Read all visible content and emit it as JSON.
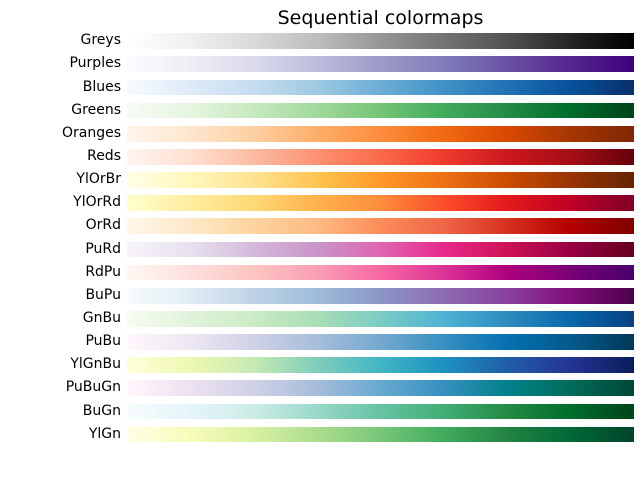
{
  "figure": {
    "title": "Sequential colormaps",
    "background_color": "#ffffff",
    "text_color": "#000000"
  },
  "chart_data": {
    "type": "heatmap",
    "title": "Sequential colormaps",
    "xlabel": "",
    "ylabel": "",
    "legend": "none",
    "grid": false,
    "layout": {
      "orientation": "horizontal-gradient-bars",
      "label_position": "left",
      "gradient_direction": "left-to-right",
      "stop_spacing": "even"
    },
    "categories": [
      "Greys",
      "Purples",
      "Blues",
      "Greens",
      "Oranges",
      "Reds",
      "YlOrBr",
      "YlOrRd",
      "OrRd",
      "PuRd",
      "RdPu",
      "BuPu",
      "GnBu",
      "PuBu",
      "YlGnBu",
      "PuBuGn",
      "BuGn",
      "YlGn"
    ],
    "rows": [
      {
        "label": "Greys",
        "gradient_stops": [
          "#ffffff",
          "#f0f0f0",
          "#d9d9d9",
          "#bdbdbd",
          "#969696",
          "#737373",
          "#525252",
          "#252525",
          "#000000"
        ]
      },
      {
        "label": "Purples",
        "gradient_stops": [
          "#fcfbfd",
          "#efedf5",
          "#dadaeb",
          "#bcbddc",
          "#9e9ac8",
          "#807dba",
          "#6a51a3",
          "#54278f",
          "#3f007d"
        ]
      },
      {
        "label": "Blues",
        "gradient_stops": [
          "#f7fbff",
          "#deebf7",
          "#c6dbef",
          "#9ecae1",
          "#6baed6",
          "#4292c6",
          "#2171b5",
          "#08519c",
          "#08306b"
        ]
      },
      {
        "label": "Greens",
        "gradient_stops": [
          "#f7fcf5",
          "#e5f5e0",
          "#c7e9c0",
          "#a1d99b",
          "#74c476",
          "#41ab5d",
          "#238b45",
          "#006d2c",
          "#00441b"
        ]
      },
      {
        "label": "Oranges",
        "gradient_stops": [
          "#fff5eb",
          "#fee6ce",
          "#fdd0a2",
          "#fdae6b",
          "#fd8d3c",
          "#f16913",
          "#d94801",
          "#a63603",
          "#7f2704"
        ]
      },
      {
        "label": "Reds",
        "gradient_stops": [
          "#fff5f0",
          "#fee0d2",
          "#fcbba1",
          "#fc9272",
          "#fb6a4a",
          "#ef3b2c",
          "#cb181d",
          "#a50f15",
          "#67000d"
        ]
      },
      {
        "label": "YlOrBr",
        "gradient_stops": [
          "#ffffe5",
          "#fff7bc",
          "#fee391",
          "#fec44f",
          "#fe9929",
          "#ec7014",
          "#cc4c02",
          "#993404",
          "#662506"
        ]
      },
      {
        "label": "YlOrRd",
        "gradient_stops": [
          "#ffffcc",
          "#ffeda0",
          "#fed976",
          "#feb24c",
          "#fd8d3c",
          "#fc4e2a",
          "#e31a1c",
          "#bd0026",
          "#800026"
        ]
      },
      {
        "label": "OrRd",
        "gradient_stops": [
          "#fff7ec",
          "#fee8c8",
          "#fdd49e",
          "#fdbb84",
          "#fc8d59",
          "#ef6548",
          "#d7301f",
          "#b30000",
          "#7f0000"
        ]
      },
      {
        "label": "PuRd",
        "gradient_stops": [
          "#f7f4f9",
          "#e7e1ef",
          "#d4b9da",
          "#c994c7",
          "#df65b0",
          "#e7298a",
          "#ce1256",
          "#980043",
          "#67001f"
        ]
      },
      {
        "label": "RdPu",
        "gradient_stops": [
          "#fff7f3",
          "#fde0dd",
          "#fcc5c0",
          "#fa9fb5",
          "#f768a1",
          "#dd3497",
          "#ae017e",
          "#7a0177",
          "#49006a"
        ]
      },
      {
        "label": "BuPu",
        "gradient_stops": [
          "#f7fcfd",
          "#e0ecf4",
          "#bfd3e6",
          "#9ebcda",
          "#8c96c6",
          "#8c6bb1",
          "#88419d",
          "#810f7c",
          "#4d004b"
        ]
      },
      {
        "label": "GnBu",
        "gradient_stops": [
          "#f7fcf0",
          "#e0f3db",
          "#ccebc5",
          "#a8ddb5",
          "#7bccc4",
          "#4eb3d3",
          "#2b8cbe",
          "#0868ac",
          "#084081"
        ]
      },
      {
        "label": "PuBu",
        "gradient_stops": [
          "#fff7fb",
          "#ece7f2",
          "#d0d1e6",
          "#a6bddb",
          "#74a9cf",
          "#3690c0",
          "#0570b0",
          "#045a8d",
          "#023858"
        ]
      },
      {
        "label": "YlGnBu",
        "gradient_stops": [
          "#ffffd9",
          "#edf8b1",
          "#c7e9b4",
          "#7fcdbb",
          "#41b6c4",
          "#1d91c0",
          "#225ea8",
          "#253494",
          "#081d58"
        ]
      },
      {
        "label": "PuBuGn",
        "gradient_stops": [
          "#fff7fb",
          "#ece2f0",
          "#d0d1e6",
          "#a6bddb",
          "#67a9cf",
          "#3690c0",
          "#02818a",
          "#016c59",
          "#014636"
        ]
      },
      {
        "label": "BuGn",
        "gradient_stops": [
          "#f7fcfd",
          "#e5f5f9",
          "#ccece6",
          "#99d8c9",
          "#66c2a4",
          "#41ae76",
          "#238b45",
          "#006d2c",
          "#00441b"
        ]
      },
      {
        "label": "YlGn",
        "gradient_stops": [
          "#ffffe5",
          "#f7fcb9",
          "#d9f0a3",
          "#addd8e",
          "#78c679",
          "#41ab5d",
          "#238443",
          "#006837",
          "#004529"
        ]
      }
    ]
  }
}
